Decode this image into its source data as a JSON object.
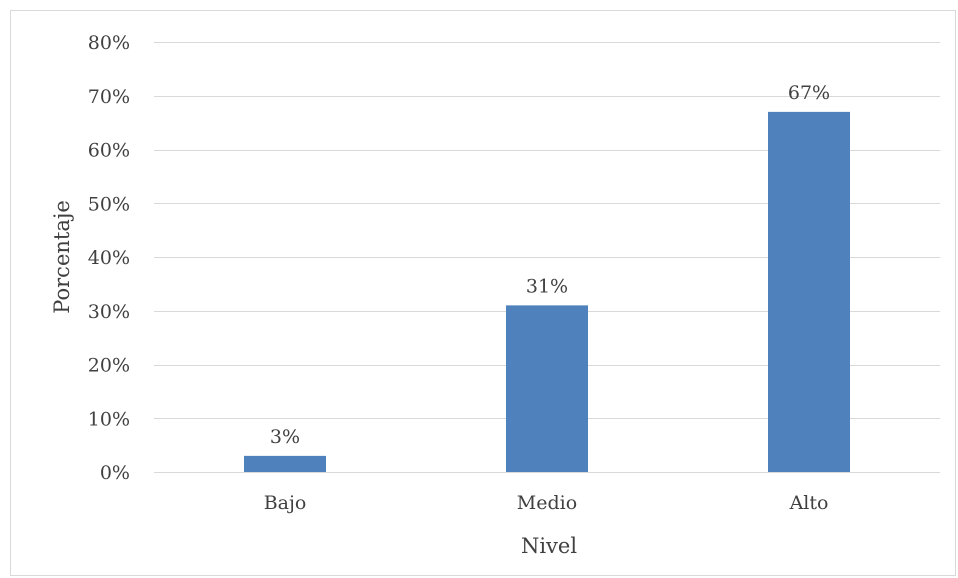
{
  "chart_data": {
    "type": "bar",
    "title": "",
    "xlabel": "Nivel",
    "ylabel": "Porcentaje",
    "categories": [
      "Bajo",
      "Medio",
      "Alto"
    ],
    "values": [
      3,
      31,
      67
    ],
    "data_labels": [
      "3%",
      "31%",
      "67%"
    ],
    "ylim": [
      0,
      80
    ],
    "yticks": [
      0,
      10,
      20,
      30,
      40,
      50,
      60,
      70,
      80
    ],
    "ytick_labels": [
      "0%",
      "10%",
      "20%",
      "30%",
      "40%",
      "50%",
      "60%",
      "70%",
      "80%"
    ],
    "grid": true,
    "legend": "none",
    "colors": {
      "bar": "#4f81bd",
      "grid": "#d9d9d9",
      "axis": "#d9d9d9",
      "text": "#404040"
    }
  }
}
